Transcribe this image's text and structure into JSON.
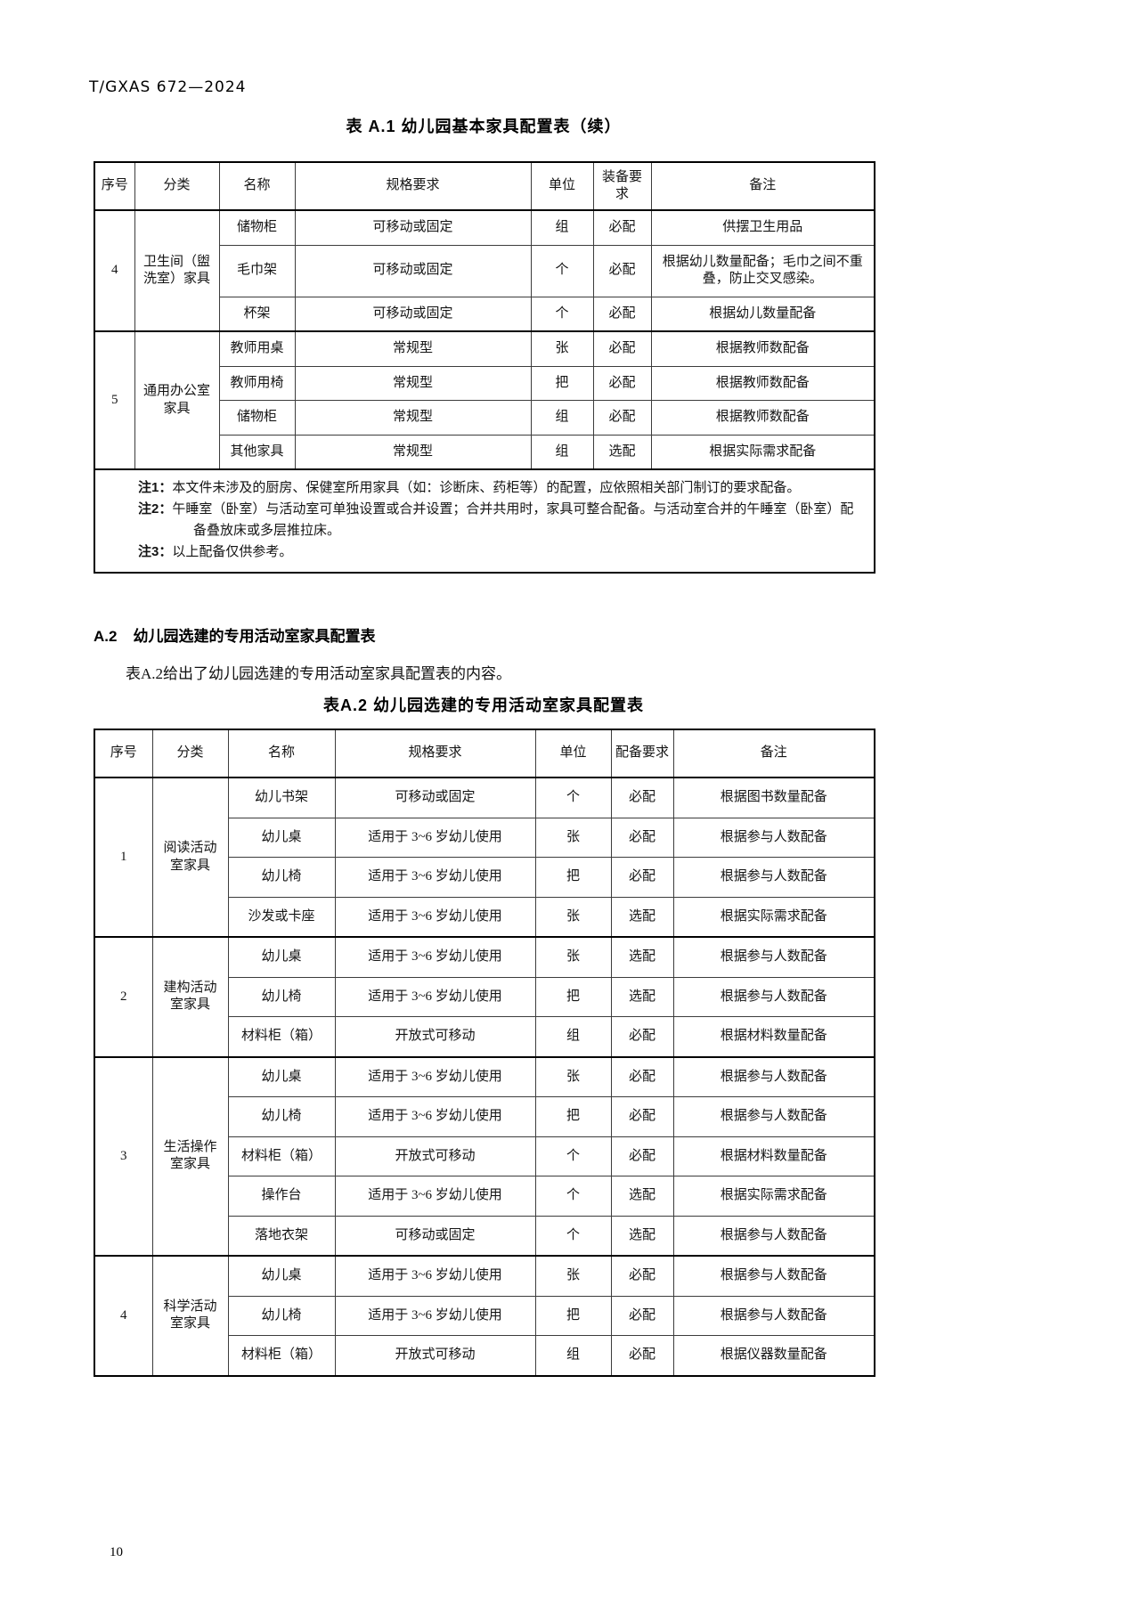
{
  "page": {
    "doc_code": "T/GXAS 672—2024",
    "page_number": "10"
  },
  "table1": {
    "title": "表 A.1 幼儿园基本家具配置表（续）",
    "headers": [
      "序号",
      "分类",
      "名称",
      "规格要求",
      "单位",
      "装备要求",
      "备注"
    ],
    "groups": [
      {
        "seq": "4",
        "category": "卫生间（盥洗室）家具",
        "rows": [
          [
            "储物柜",
            "可移动或固定",
            "组",
            "必配",
            "供摆卫生用品"
          ],
          [
            "毛巾架",
            "可移动或固定",
            "个",
            "必配",
            "根据幼儿数量配备；毛巾之间不重叠，防止交叉感染。"
          ],
          [
            "杯架",
            "可移动或固定",
            "个",
            "必配",
            "根据幼儿数量配备"
          ]
        ]
      },
      {
        "seq": "5",
        "category": "通用办公室家具",
        "rows": [
          [
            "教师用桌",
            "常规型",
            "张",
            "必配",
            "根据教师数配备"
          ],
          [
            "教师用椅",
            "常规型",
            "把",
            "必配",
            "根据教师数配备"
          ],
          [
            "储物柜",
            "常规型",
            "组",
            "必配",
            "根据教师数配备"
          ],
          [
            "其他家具",
            "常规型",
            "组",
            "选配",
            "根据实际需求配备"
          ]
        ]
      }
    ],
    "notes": [
      {
        "label": "注1：",
        "text": "本文件未涉及的厨房、保健室所用家具（如：诊断床、药柜等）的配置，应依照相关部门制订的要求配备。"
      },
      {
        "label": "注2：",
        "text": "午睡室（卧室）与活动室可单独设置或合并设置；合并共用时，家具可整合配备。与活动室合并的午睡室（卧室）配备叠放床或多层推拉床。"
      },
      {
        "label": "注3：",
        "text": "以上配备仅供参考。"
      }
    ]
  },
  "section_a2": {
    "number": "A.2",
    "heading": "幼儿园选建的专用活动室家具配置表",
    "intro": "表A.2给出了幼儿园选建的专用活动室家具配置表的内容。"
  },
  "table2": {
    "title": "表A.2 幼儿园选建的专用活动室家具配置表",
    "headers": [
      "序号",
      "分类",
      "名称",
      "规格要求",
      "单位",
      "配备要求",
      "备注"
    ],
    "groups": [
      {
        "seq": "1",
        "category": "阅读活动室家具",
        "rows": [
          [
            "幼儿书架",
            "可移动或固定",
            "个",
            "必配",
            "根据图书数量配备"
          ],
          [
            "幼儿桌",
            "适用于 3~6 岁幼儿使用",
            "张",
            "必配",
            "根据参与人数配备"
          ],
          [
            "幼儿椅",
            "适用于 3~6 岁幼儿使用",
            "把",
            "必配",
            "根据参与人数配备"
          ],
          [
            "沙发或卡座",
            "适用于 3~6 岁幼儿使用",
            "张",
            "选配",
            "根据实际需求配备"
          ]
        ]
      },
      {
        "seq": "2",
        "category": "建构活动室家具",
        "rows": [
          [
            "幼儿桌",
            "适用于 3~6 岁幼儿使用",
            "张",
            "选配",
            "根据参与人数配备"
          ],
          [
            "幼儿椅",
            "适用于 3~6 岁幼儿使用",
            "把",
            "选配",
            "根据参与人数配备"
          ],
          [
            "材料柜（箱）",
            "开放式可移动",
            "组",
            "必配",
            "根据材料数量配备"
          ]
        ]
      },
      {
        "seq": "3",
        "category": "生活操作室家具",
        "rows": [
          [
            "幼儿桌",
            "适用于 3~6 岁幼儿使用",
            "张",
            "必配",
            "根据参与人数配备"
          ],
          [
            "幼儿椅",
            "适用于 3~6 岁幼儿使用",
            "把",
            "必配",
            "根据参与人数配备"
          ],
          [
            "材料柜（箱）",
            "开放式可移动",
            "个",
            "必配",
            "根据材料数量配备"
          ],
          [
            "操作台",
            "适用于 3~6 岁幼儿使用",
            "个",
            "选配",
            "根据实际需求配备"
          ],
          [
            "落地衣架",
            "可移动或固定",
            "个",
            "选配",
            "根据参与人数配备"
          ]
        ]
      },
      {
        "seq": "4",
        "category": "科学活动室家具",
        "rows": [
          [
            "幼儿桌",
            "适用于 3~6 岁幼儿使用",
            "张",
            "必配",
            "根据参与人数配备"
          ],
          [
            "幼儿椅",
            "适用于 3~6 岁幼儿使用",
            "把",
            "必配",
            "根据参与人数配备"
          ],
          [
            "材料柜（箱）",
            "开放式可移动",
            "组",
            "必配",
            "根据仪器数量配备"
          ]
        ]
      }
    ]
  }
}
